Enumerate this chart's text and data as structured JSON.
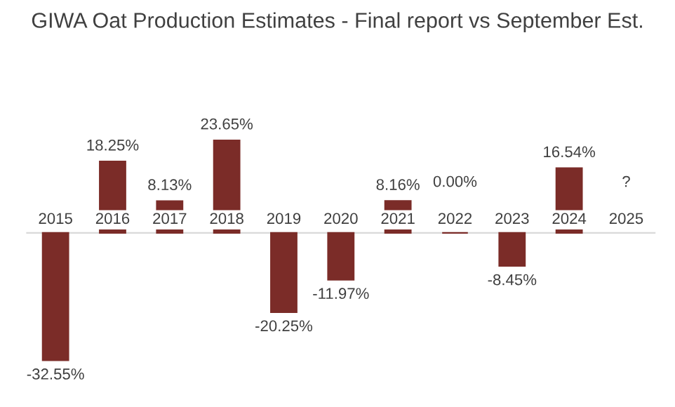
{
  "chart_data": {
    "type": "bar",
    "title": "GIWA Oat Production Estimates - Final report vs September Est.",
    "categories": [
      "2015",
      "2016",
      "2017",
      "2018",
      "2019",
      "2020",
      "2021",
      "2022",
      "2023",
      "2024",
      "2025"
    ],
    "values": [
      -32.55,
      18.25,
      8.13,
      23.65,
      -20.25,
      -11.97,
      8.16,
      0.0,
      -8.45,
      16.54,
      null
    ],
    "value_labels": [
      "-32.55%",
      "18.25%",
      "8.13%",
      "23.65%",
      "-20.25%",
      "-11.97%",
      "8.16%",
      "0.00%",
      "-8.45%",
      "16.54%",
      "?"
    ],
    "color": "#7b2c28",
    "grid": false,
    "legend": false
  }
}
